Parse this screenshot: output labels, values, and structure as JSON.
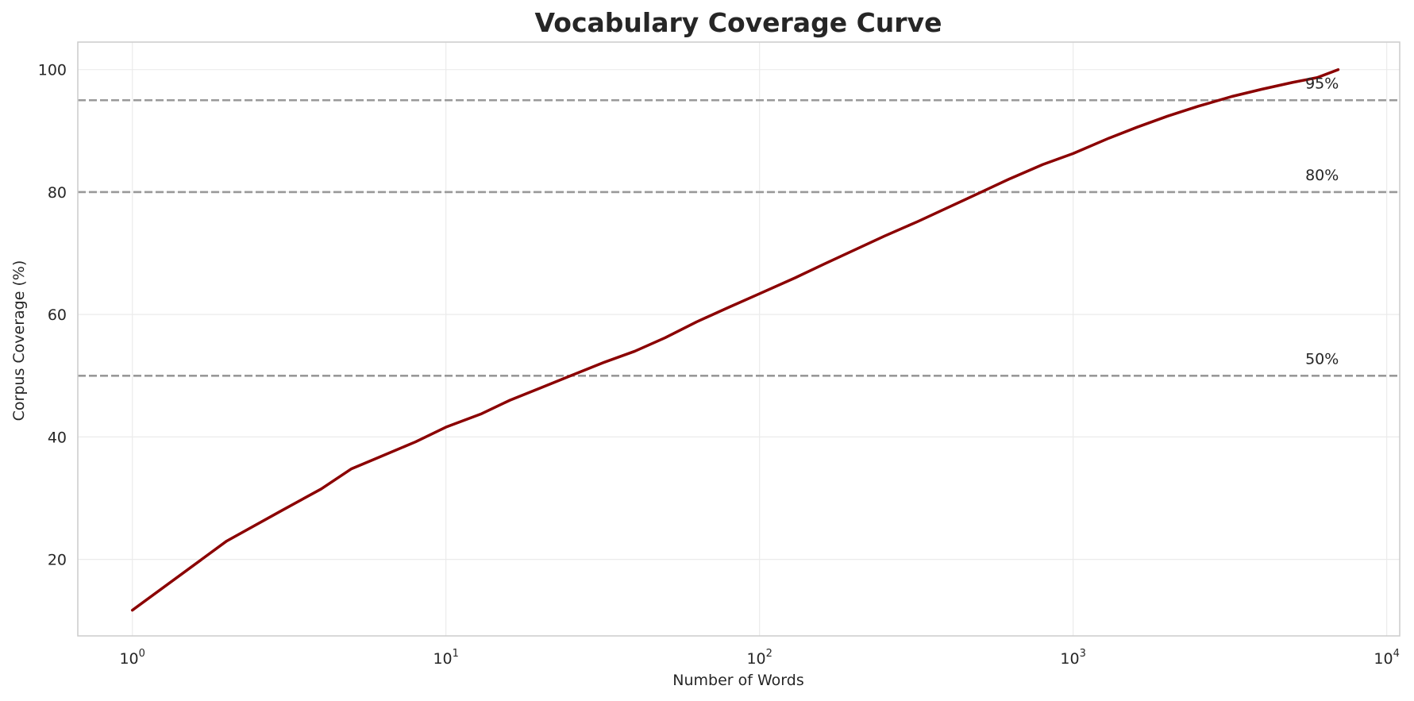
{
  "chart_data": {
    "type": "line",
    "title": "Vocabulary Coverage Curve",
    "xlabel": "Number of Words",
    "ylabel": "Corpus Coverage (%)",
    "x_scale": "log",
    "xlim": [
      0.67,
      11000
    ],
    "ylim": [
      7.5,
      104.5
    ],
    "x_ticks": [
      1,
      10,
      100,
      1000,
      10000
    ],
    "x_tick_labels": [
      {
        "base": "10",
        "exp": "0"
      },
      {
        "base": "10",
        "exp": "1"
      },
      {
        "base": "10",
        "exp": "2"
      },
      {
        "base": "10",
        "exp": "3"
      },
      {
        "base": "10",
        "exp": "4"
      }
    ],
    "y_ticks": [
      20,
      40,
      60,
      80,
      100
    ],
    "y_tick_labels": [
      "20",
      "40",
      "60",
      "80",
      "100"
    ],
    "grid": true,
    "reference_lines": [
      {
        "y": 95,
        "label": "95%"
      },
      {
        "y": 80,
        "label": "80%"
      },
      {
        "y": 50,
        "label": "50%"
      }
    ],
    "series": [
      {
        "color": "#8b0000",
        "x": [
          1,
          2,
          3,
          4,
          5,
          6,
          8,
          10,
          13,
          16,
          20,
          25,
          32,
          40,
          50,
          63,
          80,
          100,
          130,
          160,
          200,
          250,
          320,
          400,
          500,
          630,
          800,
          1000,
          1300,
          1600,
          2000,
          2500,
          3200,
          4000,
          5000,
          6000,
          7000
        ],
        "values": [
          11.7,
          23.0,
          28.0,
          31.5,
          34.8,
          36.5,
          39.2,
          41.6,
          43.8,
          46.0,
          48.0,
          50.0,
          52.2,
          54.0,
          56.2,
          58.8,
          61.2,
          63.4,
          66.0,
          68.2,
          70.5,
          72.8,
          75.2,
          77.5,
          79.8,
          82.2,
          84.5,
          86.3,
          88.8,
          90.6,
          92.4,
          94.0,
          95.6,
          96.8,
          97.9,
          98.7,
          100.0
        ]
      }
    ]
  }
}
